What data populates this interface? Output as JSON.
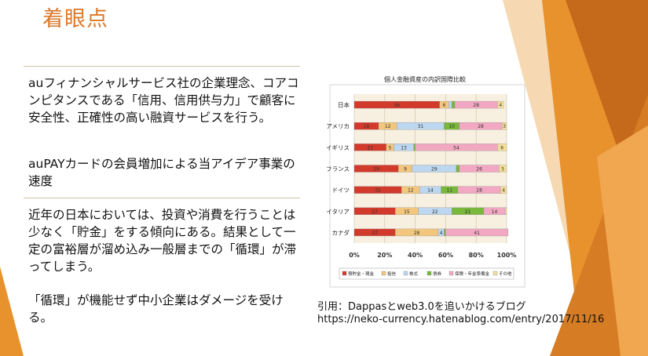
{
  "slide": {
    "title": "着眼点",
    "paragraphs": [
      "auフィナンシャルサービス社の企業理念、コアコンピタンスである「信用、信用供与力」で顧客に安全性、正確性の高い融資サービスを行う。",
      "auPAYカードの会員増加による当アイデア事業の速度",
      "近年の日本においては、投資や消費を行うことは少なく「貯金」をする傾向にある。結果として一定の富裕層が溜め込み一般層までの「循環」が滞ってしまう。",
      "「循環」が機能せず中小企業はダメージを受ける。"
    ],
    "citation_line1": "引用：Dappasとweb3.0を追いかけるブログ",
    "citation_line2": "https://neko-currency.hatenablog.com/entry/2017/11/16"
  },
  "colors": {
    "title": "#d9782a",
    "deco_orange": "#e8922e",
    "deco_dark": "#c46a1a",
    "deco_light": "#f3c48f"
  },
  "chart_data": {
    "type": "bar",
    "orientation": "horizontal",
    "stacked": "percent",
    "title": "個人金融資産の内訳国際比較",
    "categories": [
      "日本",
      "アメリカ",
      "イギリス",
      "フランス",
      "ドイツ",
      "イタリア",
      "カナダ"
    ],
    "series": [
      {
        "name": "預貯金・現金",
        "color": "#d23a2c",
        "values": [
          56,
          16,
          21,
          29,
          31,
          27,
          27
        ]
      },
      {
        "name": "投信",
        "color": "#f2c77d",
        "values": [
          6,
          12,
          5,
          9,
          12,
          15,
          28
        ]
      },
      {
        "name": "株式",
        "color": "#bcd7ef",
        "values": [
          2,
          31,
          13,
          29,
          14,
          22,
          4
        ]
      },
      {
        "name": "債券",
        "color": "#79b83a",
        "values": [
          2,
          10,
          1,
          2,
          11,
          21,
          1
        ]
      },
      {
        "name": "保険・年金準備金",
        "color": "#f2a8c2",
        "values": [
          28,
          28,
          54,
          26,
          28,
          14,
          41
        ]
      },
      {
        "name": "その他",
        "color": "#f2e09a",
        "values": [
          4,
          3,
          6,
          5,
          4,
          1,
          0
        ]
      }
    ],
    "xlim": [
      0,
      100
    ],
    "xticks": [
      "0%",
      "20%",
      "40%",
      "60%",
      "80%",
      "100%"
    ],
    "grid": true,
    "legend_position": "bottom"
  }
}
